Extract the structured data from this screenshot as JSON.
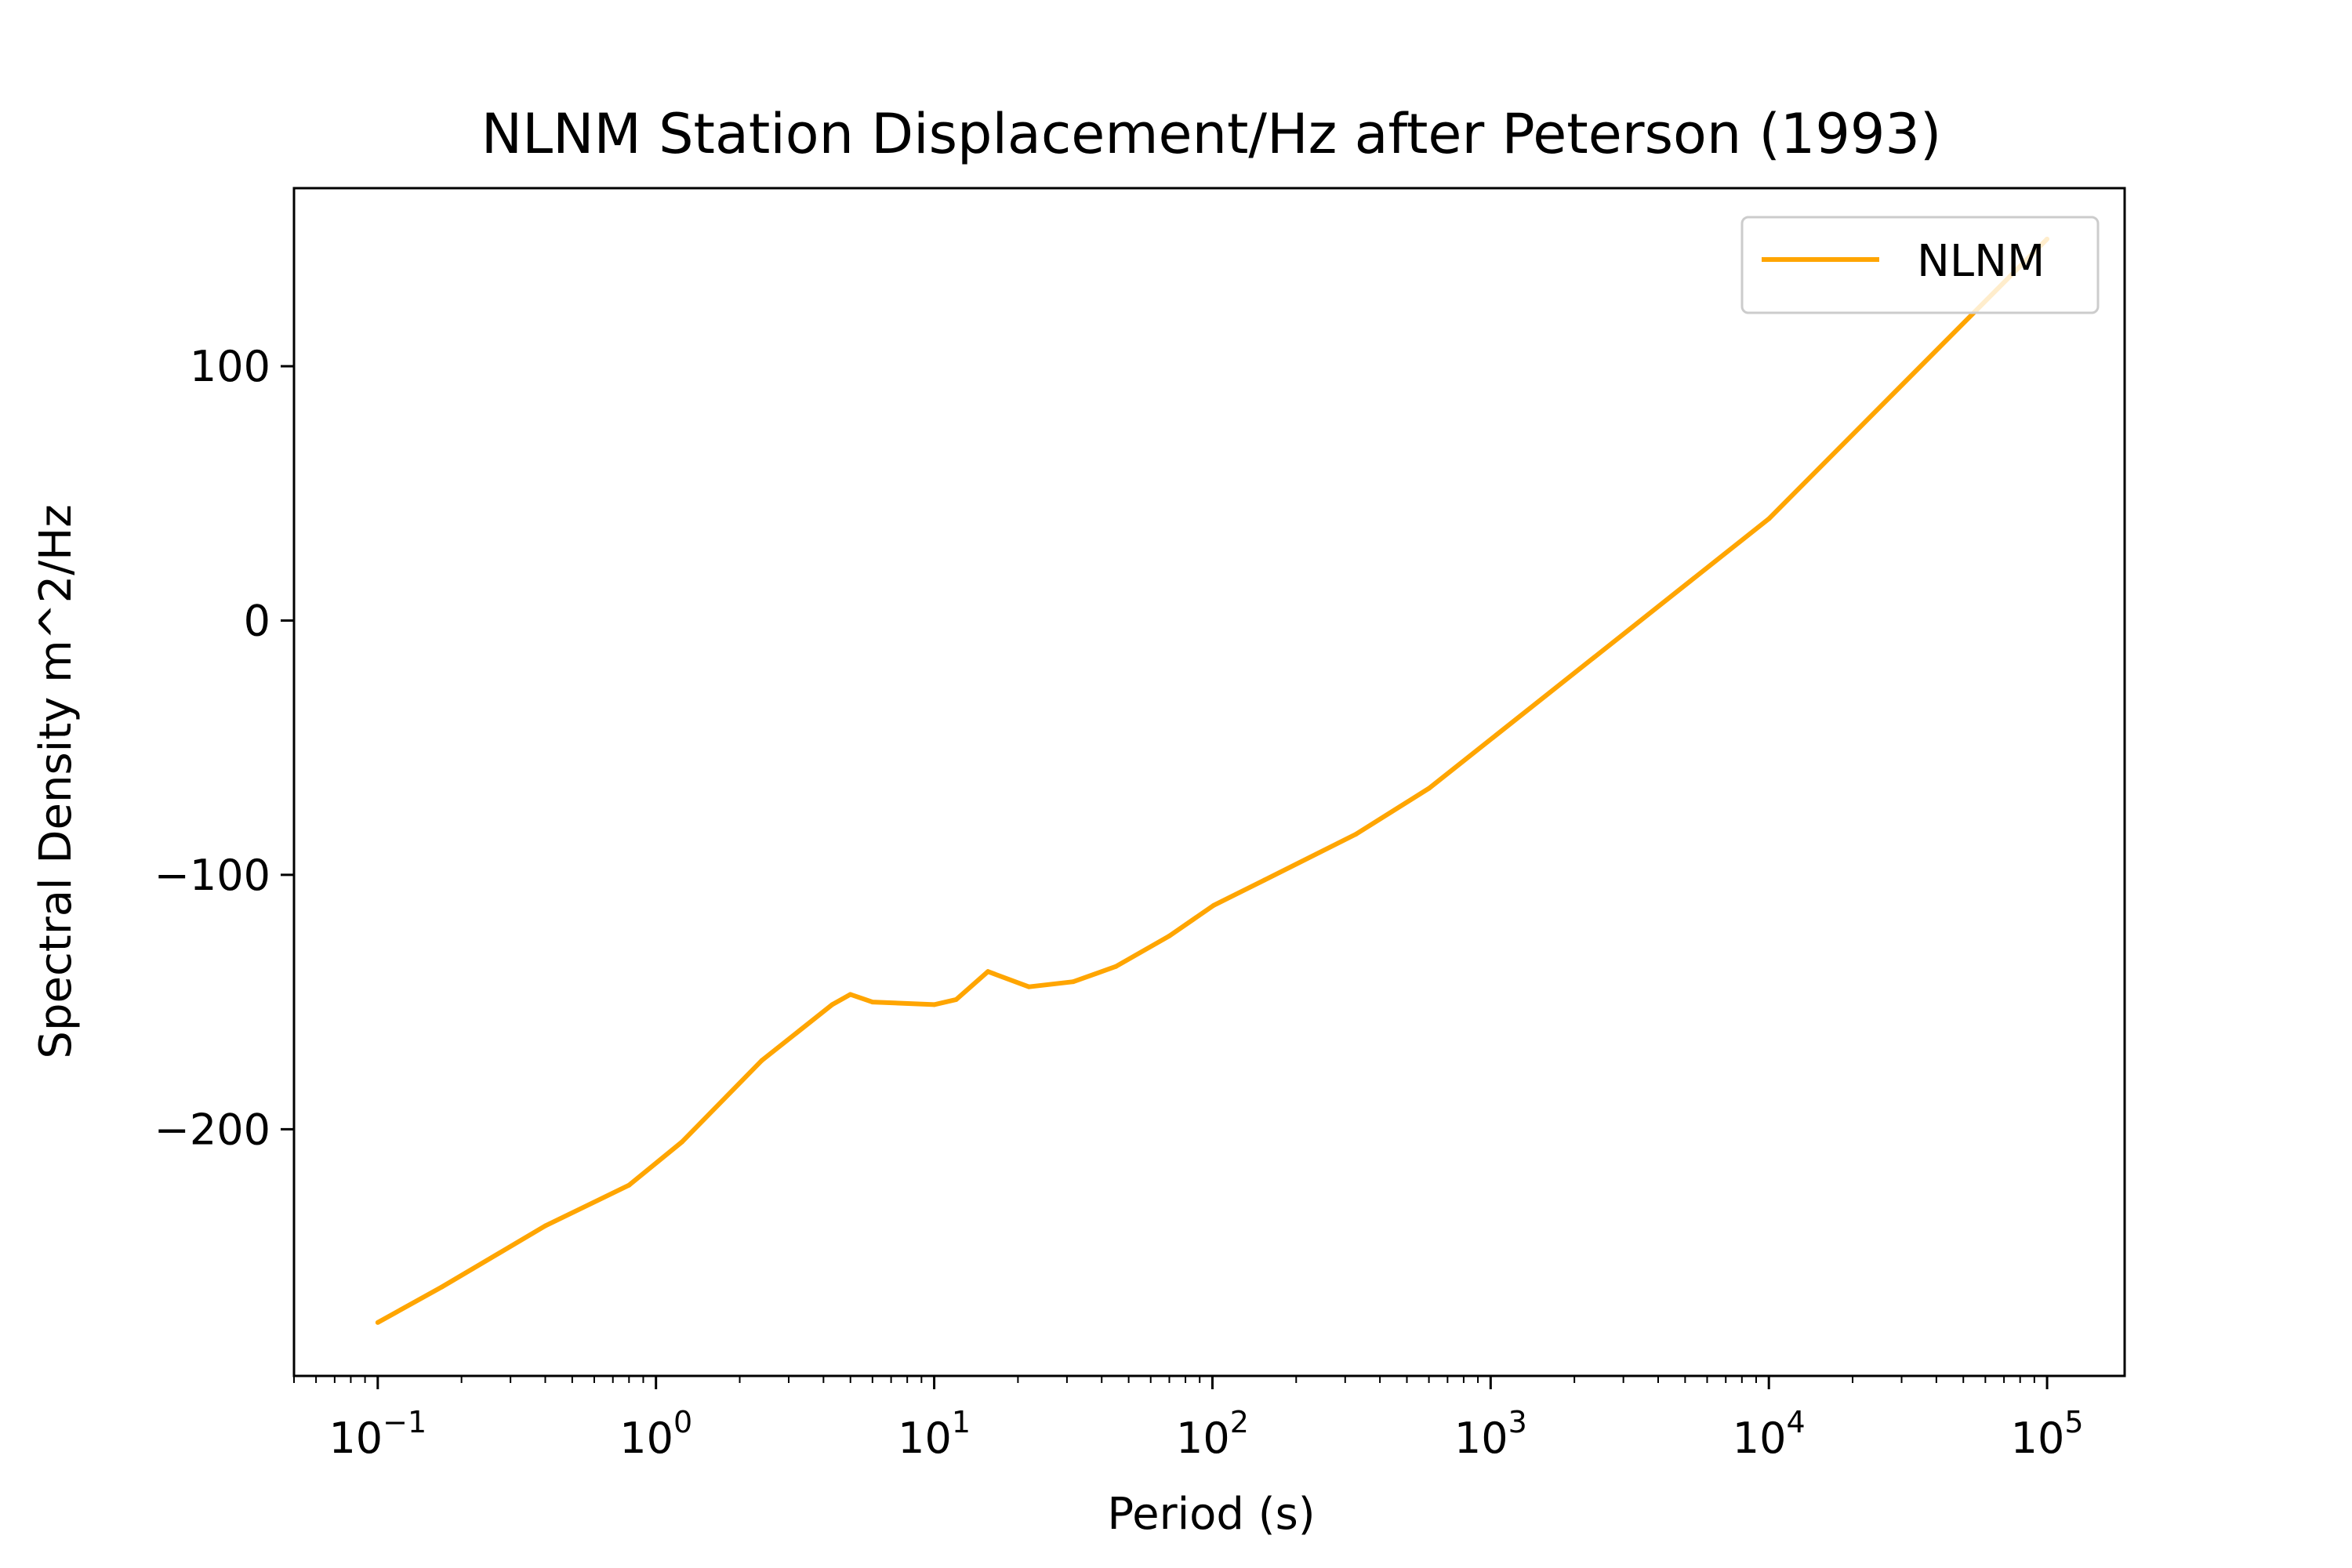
{
  "chart_data": {
    "type": "line",
    "title": "NLNM Station Displacement/Hz after Peterson (1993)",
    "xlabel": "Period (s)",
    "ylabel": "Spectral Density m^2/Hz",
    "xscale": "log",
    "xlim": [
      0.05,
      190000
    ],
    "ylim": [
      -297,
      170
    ],
    "x_major_ticks": [
      {
        "value": 0.1,
        "base": "10",
        "exp": "−1"
      },
      {
        "value": 1,
        "base": "10",
        "exp": "0"
      },
      {
        "value": 10,
        "base": "10",
        "exp": "1"
      },
      {
        "value": 100,
        "base": "10",
        "exp": "2"
      },
      {
        "value": 1000,
        "base": "10",
        "exp": "3"
      },
      {
        "value": 10000,
        "base": "10",
        "exp": "4"
      },
      {
        "value": 100000,
        "base": "10",
        "exp": "5"
      }
    ],
    "y_ticks": [
      {
        "value": 100,
        "label": "100"
      },
      {
        "value": 0,
        "label": "0"
      },
      {
        "value": -100,
        "label": "−100"
      },
      {
        "value": -200,
        "label": "−200"
      }
    ],
    "grid": false,
    "legend_position": "top-right",
    "series": [
      {
        "name": "NLNM",
        "color": "#ffa500",
        "x": [
          0.1,
          0.17,
          0.4,
          0.8,
          1.24,
          2.4,
          4.3,
          5.0,
          6.0,
          10.0,
          12.0,
          15.6,
          21.9,
          31.6,
          45.0,
          70.0,
          101.0,
          154.0,
          328.0,
          600.0,
          10000.0,
          100000.0
        ],
        "y": [
          -276,
          -262,
          -238,
          -222,
          -205,
          -173,
          -151,
          -147,
          -150,
          -151,
          -149,
          -138,
          -144,
          -142,
          -136,
          -124,
          -112,
          -102,
          -84,
          -66,
          40,
          150
        ]
      }
    ]
  }
}
